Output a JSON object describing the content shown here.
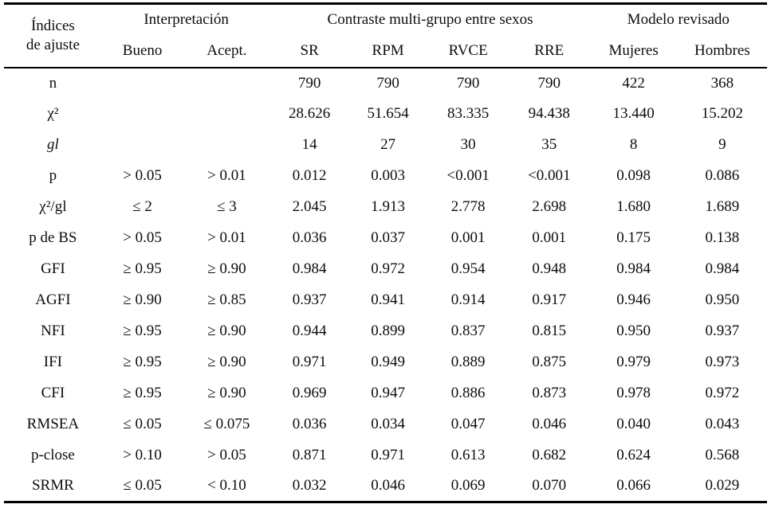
{
  "table": {
    "title_semantic": "Tabla de índices de ajuste",
    "colors": {
      "text": "#0d0d0d",
      "rule": "#000000",
      "background": "#ffffff"
    },
    "header": {
      "col1_line1": "Índices",
      "col1_line2": "de ajuste",
      "group_interpretacion": "Interpretación",
      "group_contraste": "Contraste multi-grupo entre sexos",
      "group_modelo": "Modelo revisado",
      "subheaders": [
        "Bueno",
        "Acept.",
        "SR",
        "RPM",
        "RVCE",
        "RRE",
        "Mujeres",
        "Hombres"
      ]
    },
    "rows": [
      {
        "label": "n",
        "italic": false,
        "cells": [
          "",
          "",
          "790",
          "790",
          "790",
          "790",
          "422",
          "368"
        ]
      },
      {
        "label": "χ²",
        "italic": false,
        "cells": [
          "",
          "",
          "28.626",
          "51.654",
          "83.335",
          "94.438",
          "13.440",
          "15.202"
        ]
      },
      {
        "label": "gl",
        "italic": true,
        "cells": [
          "",
          "",
          "14",
          "27",
          "30",
          "35",
          "8",
          "9"
        ]
      },
      {
        "label": "p",
        "italic": false,
        "cells": [
          "> 0.05",
          "> 0.01",
          "0.012",
          "0.003",
          "<0.001",
          "<0.001",
          "0.098",
          "0.086"
        ]
      },
      {
        "label": "χ²/gl",
        "italic": false,
        "cells": [
          "≤ 2",
          "≤ 3",
          "2.045",
          "1.913",
          "2.778",
          "2.698",
          "1.680",
          "1.689"
        ]
      },
      {
        "label": "p de BS",
        "italic": false,
        "cells": [
          "> 0.05",
          "> 0.01",
          "0.036",
          "0.037",
          "0.001",
          "0.001",
          "0.175",
          "0.138"
        ]
      },
      {
        "label": "GFI",
        "italic": false,
        "cells": [
          "≥ 0.95",
          "≥ 0.90",
          "0.984",
          "0.972",
          "0.954",
          "0.948",
          "0.984",
          "0.984"
        ]
      },
      {
        "label": "AGFI",
        "italic": false,
        "cells": [
          "≥ 0.90",
          "≥ 0.85",
          "0.937",
          "0.941",
          "0.914",
          "0.917",
          "0.946",
          "0.950"
        ]
      },
      {
        "label": "NFI",
        "italic": false,
        "cells": [
          "≥ 0.95",
          "≥ 0.90",
          "0.944",
          "0.899",
          "0.837",
          "0.815",
          "0.950",
          "0.937"
        ]
      },
      {
        "label": "IFI",
        "italic": false,
        "cells": [
          "≥ 0.95",
          "≥ 0.90",
          "0.971",
          "0.949",
          "0.889",
          "0.875",
          "0.979",
          "0.973"
        ]
      },
      {
        "label": "CFI",
        "italic": false,
        "cells": [
          "≥ 0.95",
          "≥ 0.90",
          "0.969",
          "0.947",
          "0.886",
          "0.873",
          "0.978",
          "0.972"
        ]
      },
      {
        "label": "RMSEA",
        "italic": false,
        "cells": [
          "≤ 0.05",
          "≤ 0.075",
          "0.036",
          "0.034",
          "0.047",
          "0.046",
          "0.040",
          "0.043"
        ]
      },
      {
        "label": "p-close",
        "italic": false,
        "cells": [
          "> 0.10",
          "> 0.05",
          "0.871",
          "0.971",
          "0.613",
          "0.682",
          "0.624",
          "0.568"
        ]
      },
      {
        "label": "SRMR",
        "italic": false,
        "cells": [
          "≤ 0.05",
          "< 0.10",
          "0.032",
          "0.046",
          "0.069",
          "0.070",
          "0.066",
          "0.029"
        ]
      }
    ]
  }
}
